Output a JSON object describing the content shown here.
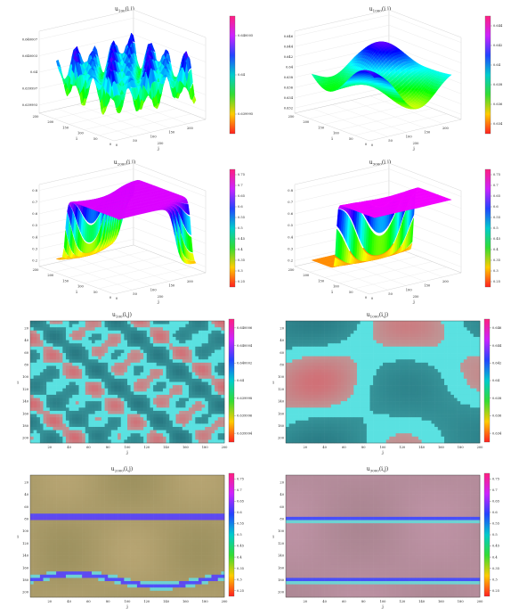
{
  "chart_data": [
    {
      "type": "surface",
      "title_base": "u",
      "title_sub": "100",
      "title_args": "(i,j)",
      "ylabel": "j",
      "xlabel": "i",
      "x_ticks": [
        "0",
        "50",
        "100",
        "150",
        "200"
      ],
      "y_ticks": [
        "0",
        "50",
        "100",
        "150",
        "200",
        "250"
      ],
      "z_ticks": [
        "0.639993",
        "0.639997",
        "0.64",
        "0.640003",
        "0.640007"
      ],
      "zlim": [
        0.63999,
        0.64001
      ],
      "colorbar_ticks": [
        "0.639995",
        "0.64",
        "0.640005"
      ],
      "grid": true
    },
    {
      "type": "surface",
      "title_base": "u",
      "title_sub": "1000",
      "title_args": "(i,j)",
      "ylabel": "j",
      "xlabel": "i",
      "x_ticks": [
        "0",
        "50",
        "100",
        "150",
        "200"
      ],
      "y_ticks": [
        "0",
        "50",
        "100",
        "150",
        "200",
        "250"
      ],
      "z_ticks": [
        "0.632",
        "0.634",
        "0.636",
        "0.638",
        "0.64",
        "0.642",
        "0.644",
        "0.646"
      ],
      "zlim": [
        0.632,
        0.646
      ],
      "colorbar_ticks": [
        "0.634",
        "0.636",
        "0.638",
        "0.64",
        "0.642",
        "0.644"
      ],
      "grid": true
    },
    {
      "type": "surface",
      "title_base": "u",
      "title_sub": "2000",
      "title_args": "(i,j)",
      "ylabel": "j",
      "xlabel": "i",
      "x_ticks": [
        "0",
        "50",
        "100",
        "150",
        "200"
      ],
      "y_ticks": [
        "0",
        "50",
        "100",
        "150",
        "200",
        "250"
      ],
      "z_ticks": [
        "0.2",
        "0.3",
        "0.4",
        "0.5",
        "0.6",
        "0.7",
        "0.8"
      ],
      "zlim": [
        0.2,
        0.8
      ],
      "colorbar_ticks": [
        "0.25",
        "0.3",
        "0.35",
        "0.4",
        "0.45",
        "0.5",
        "0.55",
        "0.6",
        "0.65",
        "0.7",
        "0.75"
      ],
      "grid": true
    },
    {
      "type": "surface",
      "title_base": "u",
      "title_sub": "3000",
      "title_args": "(i,j)",
      "ylabel": "j",
      "xlabel": "i",
      "x_ticks": [
        "0",
        "50",
        "100",
        "150",
        "200"
      ],
      "y_ticks": [
        "0",
        "50",
        "100",
        "150",
        "200",
        "250"
      ],
      "z_ticks": [
        "0.2",
        "0.3",
        "0.4",
        "0.5",
        "0.6",
        "0.7",
        "0.8"
      ],
      "zlim": [
        0.2,
        0.8
      ],
      "colorbar_ticks": [
        "0.25",
        "0.3",
        "0.35",
        "0.4",
        "0.45",
        "0.5",
        "0.55",
        "0.6",
        "0.65",
        "0.7",
        "0.75"
      ],
      "grid": true
    },
    {
      "type": "heatmap",
      "title_base": "u",
      "title_sub": "100",
      "title_args": "(i,j)",
      "xlabel": "j",
      "ylabel": "i",
      "x_ticks": [
        "20",
        "40",
        "60",
        "80",
        "100",
        "120",
        "140",
        "160",
        "180",
        "200"
      ],
      "y_ticks": [
        "20",
        "40",
        "60",
        "80",
        "100",
        "120",
        "140",
        "160",
        "180",
        "200"
      ],
      "colorbar_ticks": [
        "0.639994",
        "0.639996",
        "0.639998",
        "0.64",
        "0.640002",
        "0.640004",
        "0.640006"
      ]
    },
    {
      "type": "heatmap",
      "title_base": "u",
      "title_sub": "1000",
      "title_args": "(i,j)",
      "xlabel": "j",
      "ylabel": "i",
      "x_ticks": [
        "20",
        "40",
        "60",
        "80",
        "100",
        "120",
        "140",
        "160",
        "180",
        "200"
      ],
      "y_ticks": [
        "20",
        "40",
        "60",
        "80",
        "100",
        "120",
        "140",
        "160",
        "180",
        "200"
      ],
      "colorbar_ticks": [
        "0.634",
        "0.636",
        "0.638",
        "0.64",
        "0.642",
        "0.644",
        "0.646"
      ]
    },
    {
      "type": "heatmap",
      "title_base": "u",
      "title_sub": "2000",
      "title_args": "(i,j)",
      "xlabel": "j",
      "ylabel": "i",
      "x_ticks": [
        "20",
        "40",
        "60",
        "80",
        "100",
        "120",
        "140",
        "160",
        "180",
        "200"
      ],
      "y_ticks": [
        "20",
        "40",
        "60",
        "80",
        "100",
        "120",
        "140",
        "160",
        "180",
        "200"
      ],
      "colorbar_ticks": [
        "0.25",
        "0.3",
        "0.35",
        "0.4",
        "0.45",
        "0.5",
        "0.55",
        "0.6",
        "0.65",
        "0.7",
        "0.75"
      ]
    },
    {
      "type": "heatmap",
      "title_base": "u",
      "title_sub": "3000",
      "title_args": "(i,j)",
      "xlabel": "j",
      "ylabel": "i",
      "x_ticks": [
        "20",
        "40",
        "60",
        "80",
        "100",
        "120",
        "140",
        "160",
        "180",
        "200"
      ],
      "y_ticks": [
        "20",
        "40",
        "60",
        "80",
        "100",
        "120",
        "140",
        "160",
        "180",
        "200"
      ],
      "colorbar_ticks": [
        "0.25",
        "0.3",
        "0.35",
        "0.4",
        "0.45",
        "0.5",
        "0.55",
        "0.6",
        "0.65",
        "0.7",
        "0.75"
      ]
    }
  ]
}
